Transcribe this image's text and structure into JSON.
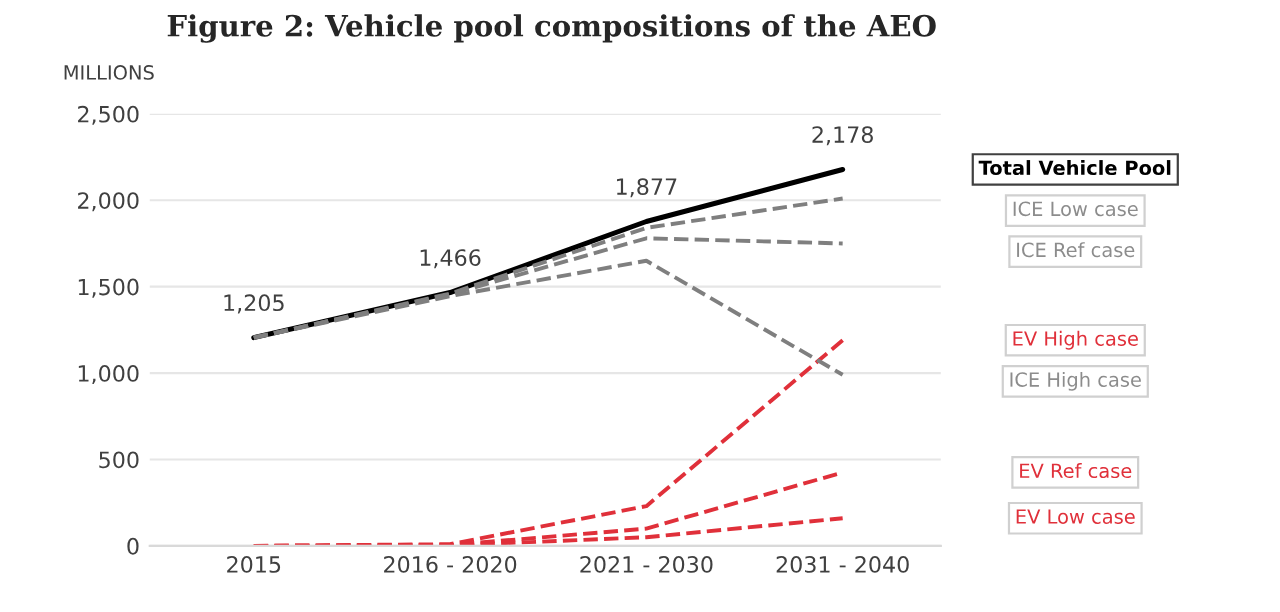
{
  "chart_data": {
    "type": "line",
    "title": "Figure 2: Vehicle pool compositions of the AEO",
    "ylabel": "MILLIONS",
    "categories": [
      "2015",
      "2016 - 2020",
      "2021 - 2030",
      "2031 - 2040"
    ],
    "series": [
      {
        "name": "Total Vehicle Pool",
        "color": "#000000",
        "line_style": "solid",
        "values": [
          1205,
          1466,
          1877,
          2178
        ],
        "value_labels": [
          "1,205",
          "1,466",
          "1,877",
          "2,178"
        ]
      },
      {
        "name": "ICE Low case",
        "color": "#7f7f7f",
        "line_style": "dashed",
        "values": [
          1205,
          1460,
          1840,
          2010
        ]
      },
      {
        "name": "ICE Ref case",
        "color": "#7f7f7f",
        "line_style": "dashed",
        "values": [
          1205,
          1455,
          1780,
          1750
        ]
      },
      {
        "name": "EV High case",
        "color": "#e0303a",
        "line_style": "dashed",
        "values": [
          0,
          10,
          230,
          1190
        ]
      },
      {
        "name": "ICE High case",
        "color": "#7f7f7f",
        "line_style": "dashed",
        "values": [
          1205,
          1445,
          1650,
          990
        ]
      },
      {
        "name": "EV Ref case",
        "color": "#e0303a",
        "line_style": "dashed",
        "values": [
          0,
          5,
          100,
          425
        ]
      },
      {
        "name": "EV Low case",
        "color": "#e0303a",
        "line_style": "dashed",
        "values": [
          0,
          3,
          50,
          160
        ]
      }
    ],
    "ylim": [
      0,
      2500
    ],
    "yticks": [
      {
        "value": 0,
        "label": "0"
      },
      {
        "value": 500,
        "label": "500"
      },
      {
        "value": 1000,
        "label": "1,000"
      },
      {
        "value": 1500,
        "label": "1,500"
      },
      {
        "value": 2000,
        "label": "2,000"
      },
      {
        "value": 2500,
        "label": "2,500"
      }
    ],
    "grid": "y",
    "legend": false,
    "marker": "none"
  }
}
